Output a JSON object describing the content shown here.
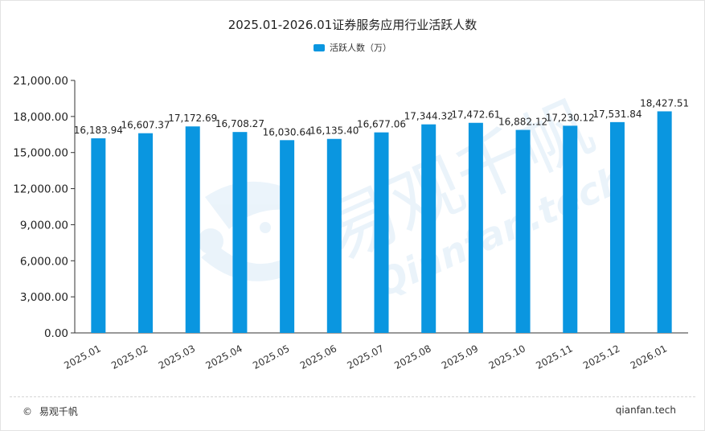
{
  "header": {
    "title": "2025.01-2026.01证券服务应用行业活跃人数"
  },
  "footer": {
    "copyright_symbol": "©",
    "brand_left": "易观千帆",
    "brand_right": "qianfan.tech"
  },
  "watermark": {
    "cn": "易观千帆",
    "en": "Qianfan.tech"
  },
  "colors": {
    "bar": "#0a96e0",
    "axis": "#333333",
    "text": "#222222"
  },
  "chart_data": {
    "type": "bar",
    "title": "2025.01-2026.01证券服务应用行业活跃人数",
    "categories": [
      "2025.01",
      "2025.02",
      "2025.03",
      "2025.04",
      "2025.05",
      "2025.06",
      "2025.07",
      "2025.08",
      "2025.09",
      "2025.10",
      "2025.11",
      "2025.12",
      "2026.01"
    ],
    "series": [
      {
        "name": "活跃人数（万）",
        "values": [
          16183.94,
          16607.37,
          17172.69,
          16708.27,
          16030.64,
          16135.4,
          16677.06,
          17344.32,
          17472.61,
          16882.12,
          17230.12,
          17531.84,
          18427.51
        ],
        "data_labels": [
          "16,183.94",
          "16,607.37",
          "17,172.69",
          "16,708.27",
          "16,030.64",
          "16,135.40",
          "16,677.06",
          "17,344.32",
          "17,472.61",
          "16,882.12",
          "17,230.12",
          "17,531.84",
          "18,427.51"
        ]
      }
    ],
    "yticks": [
      0,
      3000,
      6000,
      9000,
      12000,
      15000,
      18000,
      21000
    ],
    "ytick_labels": [
      "0.00",
      "3,000.00",
      "6,000.00",
      "9,000.00",
      "12,000.00",
      "15,000.00",
      "18,000.00",
      "21,000.00"
    ],
    "ylim": [
      0,
      21000
    ],
    "xlabel": "",
    "ylabel": "",
    "grid": false,
    "legend_position": "top-center"
  }
}
